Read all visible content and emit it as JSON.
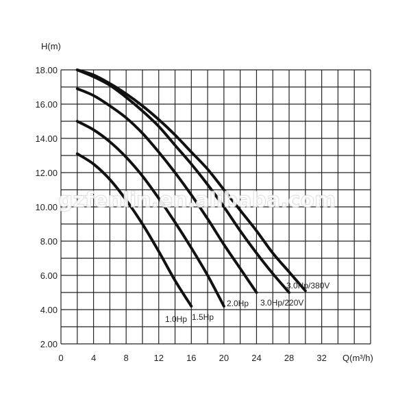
{
  "chart_data": {
    "type": "line",
    "title": "",
    "xlabel": "Q(m³/h)",
    "ylabel": "H(m)",
    "xlim": [
      0,
      38
    ],
    "ylim": [
      2,
      18
    ],
    "x_ticks": [
      0,
      4,
      8,
      12,
      16,
      20,
      24,
      28,
      32
    ],
    "x_tick_labels": [
      "0",
      "4",
      "8",
      "12",
      "16",
      "20",
      "24",
      "28",
      "32"
    ],
    "y_ticks": [
      2,
      4,
      6,
      8,
      10,
      12,
      14,
      16,
      18
    ],
    "y_tick_labels": [
      "2.00",
      "4.00",
      "6.00",
      "8.00",
      "10.00",
      "12.00",
      "14.00",
      "16.00",
      "18.00"
    ],
    "grid": true,
    "grid_step_x": 2,
    "grid_step_y": 1,
    "series": [
      {
        "name": "1.0Hp",
        "x": [
          2,
          4,
          6,
          8,
          10,
          12,
          14,
          16
        ],
        "y": [
          13.1,
          12.5,
          11.6,
          10.4,
          9.0,
          7.4,
          5.7,
          4.2
        ]
      },
      {
        "name": "1.5Hp",
        "x": [
          2,
          4,
          6,
          8,
          10,
          12,
          14,
          16,
          18,
          20
        ],
        "y": [
          15.0,
          14.5,
          13.8,
          12.9,
          11.8,
          10.5,
          9.1,
          7.6,
          6.0,
          4.2
        ]
      },
      {
        "name": "2.0Hp",
        "x": [
          2,
          4,
          6,
          8,
          10,
          12,
          14,
          16,
          18,
          20,
          22,
          24
        ],
        "y": [
          16.9,
          16.5,
          15.9,
          15.2,
          14.3,
          13.2,
          12.0,
          10.7,
          9.3,
          7.8,
          6.4,
          5.0
        ]
      },
      {
        "name": "3.0Hp/220V",
        "x": [
          2,
          4,
          6,
          8,
          10,
          12,
          14,
          16,
          18,
          20,
          22,
          24,
          26,
          28
        ],
        "y": [
          18.0,
          17.6,
          17.1,
          16.4,
          15.6,
          14.7,
          13.6,
          12.5,
          11.3,
          10.0,
          8.6,
          7.3,
          6.1,
          5.0
        ]
      },
      {
        "name": "3.0Hp/380V",
        "x": [
          2,
          4,
          6,
          8,
          10,
          12,
          14,
          16,
          18,
          20,
          22,
          24,
          26,
          28,
          30
        ],
        "y": [
          18.0,
          17.7,
          17.2,
          16.6,
          15.9,
          15.1,
          14.2,
          13.2,
          12.2,
          11.0,
          9.8,
          8.6,
          7.3,
          6.2,
          5.1
        ]
      }
    ],
    "curve_labels": [
      "1.0Hp",
      "1.5Hp",
      "2.0Hp",
      "3.0Hp/220V",
      "3.0Hp/380V"
    ],
    "watermark": "gzfenlin.en.alibaba.com"
  }
}
